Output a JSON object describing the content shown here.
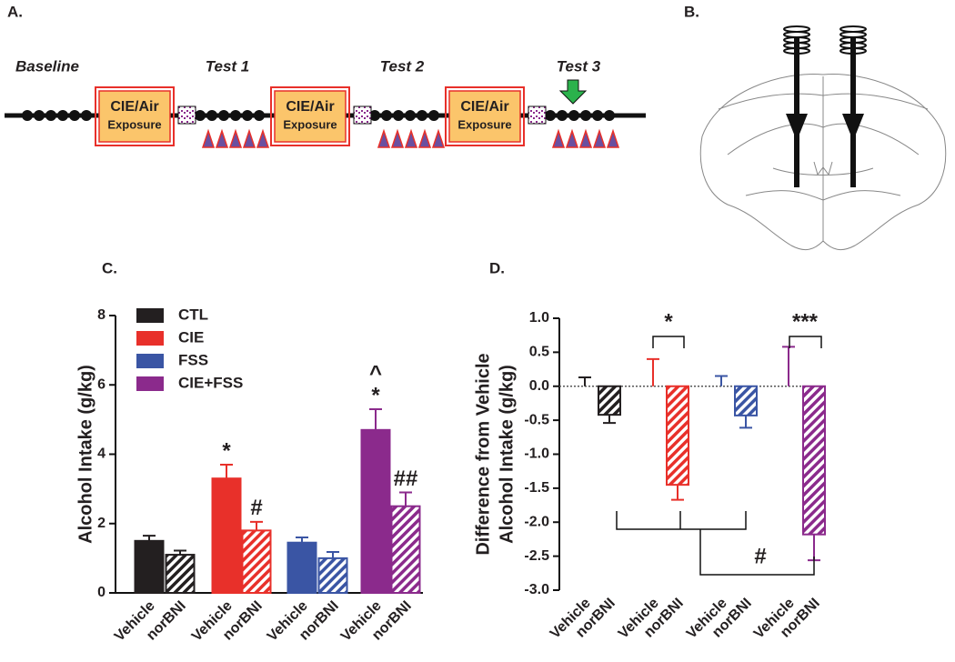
{
  "panel_a": {
    "label": "A.",
    "phases": [
      "Baseline",
      "Test 1",
      "Test 2",
      "Test 3"
    ],
    "boxes": [
      [
        "CIE/Air",
        "Exposure"
      ],
      [
        "CIE/Air",
        "Exposure"
      ],
      [
        "CIE/Air",
        "Exposure"
      ]
    ]
  },
  "panel_b": {
    "label": "B."
  },
  "chart_data": [
    {
      "type": "bar",
      "label": "C.",
      "ylabel": [
        "Alcohol Intake (g/kg)"
      ],
      "categories": [
        "Vehicle",
        "norBNI",
        "Vehicle",
        "norBNI",
        "Vehicle",
        "norBNI",
        "Vehicle",
        "norBNI"
      ],
      "ylim": [
        0,
        8
      ],
      "yticks": [
        0,
        2,
        4,
        6,
        8
      ],
      "legend": "top-left",
      "series": [
        {
          "name": "CTL",
          "color": "#231f20",
          "values": [
            1.5,
            1.1,
            null,
            null,
            null,
            null,
            null,
            null
          ],
          "errors": [
            0.15,
            0.12,
            null,
            null,
            null,
            null,
            null,
            null
          ],
          "annotations": [
            null,
            null,
            null,
            null,
            null,
            null,
            null,
            null
          ]
        },
        {
          "name": "CIE",
          "color": "#e8302a",
          "values": [
            null,
            null,
            3.3,
            1.8,
            null,
            null,
            null,
            null
          ],
          "errors": [
            null,
            null,
            0.4,
            0.25,
            null,
            null,
            null,
            null
          ],
          "annotations": [
            null,
            null,
            [
              "*"
            ],
            [
              "#"
            ],
            null,
            null,
            null,
            null
          ]
        },
        {
          "name": "FSS",
          "color": "#3a55a4",
          "values": [
            null,
            null,
            null,
            null,
            1.45,
            1.0,
            null,
            null
          ],
          "errors": [
            null,
            null,
            null,
            null,
            0.15,
            0.18,
            null,
            null
          ],
          "annotations": [
            null,
            null,
            null,
            null,
            null,
            null,
            null,
            null
          ]
        },
        {
          "name": "CIE+FSS",
          "color": "#8b2a8c",
          "values": [
            null,
            null,
            null,
            null,
            null,
            null,
            4.7,
            2.5
          ],
          "errors": [
            null,
            null,
            null,
            null,
            null,
            null,
            0.6,
            0.4
          ],
          "annotations": [
            null,
            null,
            null,
            null,
            null,
            null,
            [
              "^",
              "*"
            ],
            [
              "##"
            ]
          ]
        }
      ]
    },
    {
      "type": "bar",
      "label": "D.",
      "ylabel": [
        "Difference from Vehicle",
        "Alcohol Intake (g/kg)"
      ],
      "categories": [
        "Vehicle",
        "norBNI",
        "Vehicle",
        "norBNI",
        "Vehicle",
        "norBNI",
        "Vehicle",
        "norBNI"
      ],
      "ylim": [
        -3,
        1
      ],
      "yticks": [
        {
          "value": -3,
          "label": "-3.0"
        },
        -2.5,
        {
          "value": -2,
          "label": "-2.0"
        },
        -1.5,
        {
          "value": -1,
          "label": "-1.0"
        },
        -0.5,
        {
          "value": 0,
          "label": "0.0"
        },
        0.5,
        {
          "value": 1,
          "label": "1.0"
        }
      ],
      "series": [
        {
          "name": "CTL",
          "color": "#231f20",
          "values": [
            0,
            -0.42,
            null,
            null,
            null,
            null,
            null,
            null
          ],
          "errors": [
            0.13,
            0.12,
            null,
            null,
            null,
            null,
            null,
            null
          ]
        },
        {
          "name": "CIE",
          "color": "#e8302a",
          "values": [
            null,
            null,
            0,
            -1.45,
            null,
            null,
            null,
            null
          ],
          "errors": [
            null,
            null,
            0.4,
            0.22,
            null,
            null,
            null,
            null
          ]
        },
        {
          "name": "FSS",
          "color": "#3a55a4",
          "values": [
            null,
            null,
            null,
            null,
            0,
            -0.43,
            null,
            null
          ],
          "errors": [
            null,
            null,
            null,
            null,
            0.15,
            0.18,
            null,
            null
          ]
        },
        {
          "name": "CIE+FSS",
          "color": "#8b2a8c",
          "values": [
            null,
            null,
            null,
            null,
            null,
            null,
            0,
            -2.18
          ],
          "errors": [
            null,
            null,
            null,
            null,
            null,
            null,
            0.58,
            0.38
          ]
        }
      ],
      "annotations": [
        "*",
        "***",
        "#"
      ]
    }
  ]
}
